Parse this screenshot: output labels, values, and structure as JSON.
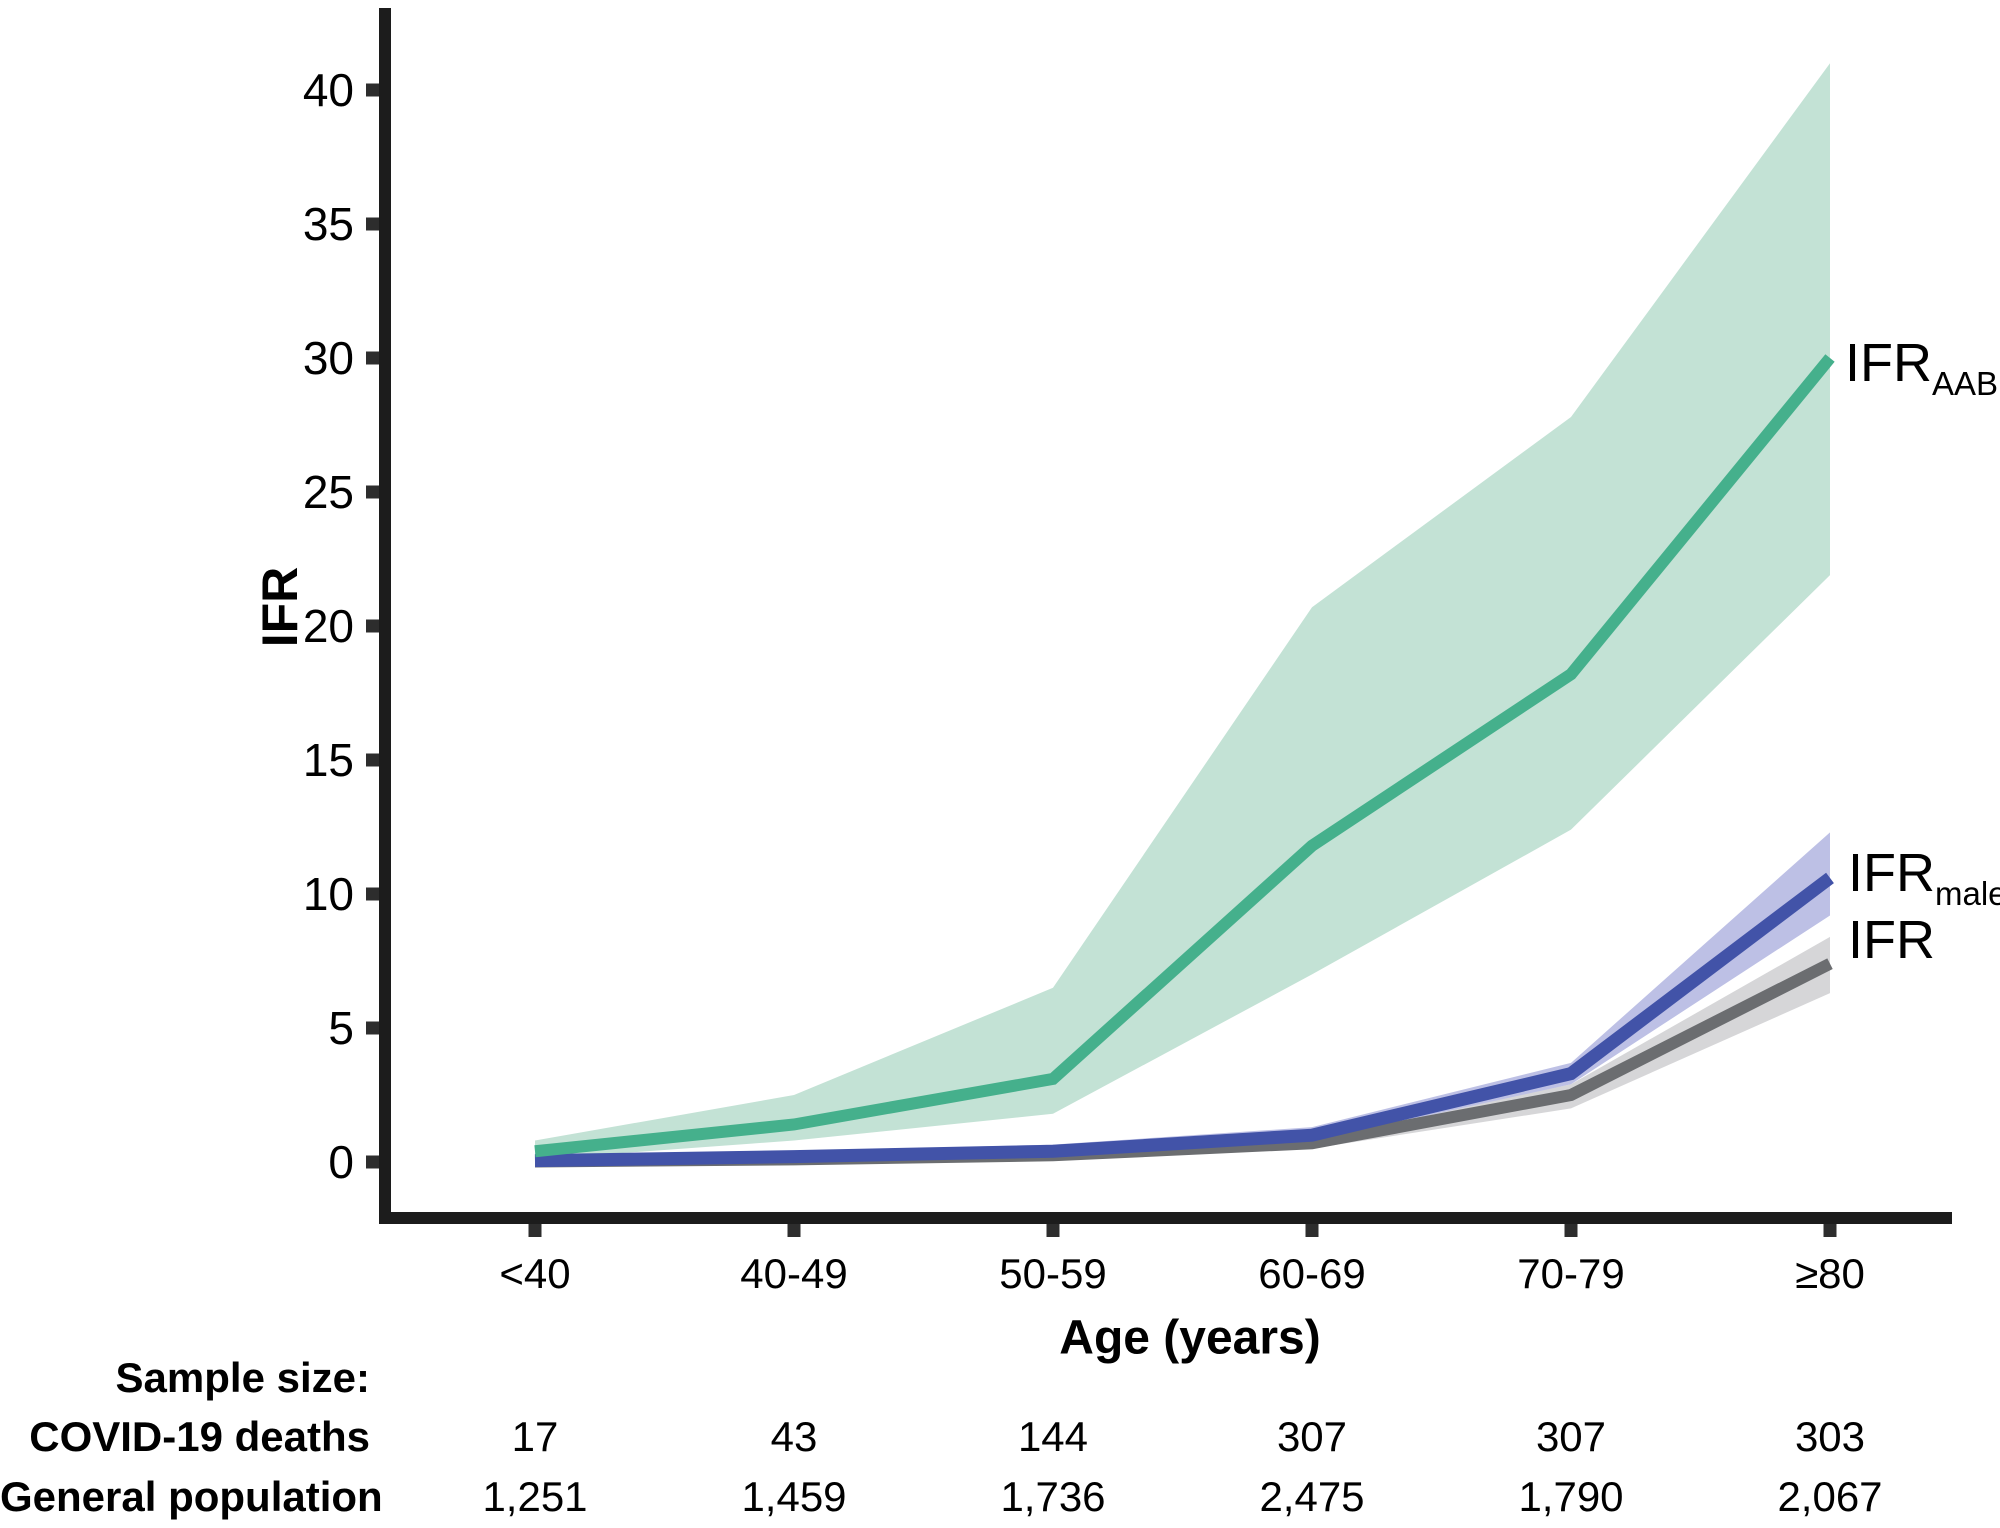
{
  "chart_data": {
    "type": "line",
    "title": "",
    "xlabel": "Age (years)",
    "ylabel": "IFR",
    "categories": [
      "<40",
      "40-49",
      "50-59",
      "60-69",
      "70-79",
      "≥80"
    ],
    "ylim": [
      0,
      40
    ],
    "yticks": [
      0,
      5,
      10,
      15,
      20,
      25,
      30,
      35,
      40
    ],
    "grid": false,
    "legend_position": "right-of-line-ends",
    "series": [
      {
        "name": "IFR_AAB",
        "label_main": "IFR",
        "label_sub": "AAB",
        "color": "#45B08C",
        "band_color": "#C3E2D5",
        "values": [
          0.4,
          1.4,
          3.1,
          11.8,
          18.2,
          30.0
        ],
        "ci_low": [
          0.1,
          0.8,
          1.8,
          7.0,
          12.4,
          21.9
        ],
        "ci_high": [
          0.8,
          2.5,
          6.5,
          20.7,
          27.8,
          41.0
        ]
      },
      {
        "name": "IFR_males",
        "label_main": "IFR",
        "label_sub": "males",
        "color": "#4253A8",
        "band_color": "#BDC0E5",
        "values": [
          0.05,
          0.2,
          0.4,
          1.0,
          3.3,
          10.6
        ],
        "ci_low": [
          0.0,
          0.05,
          0.2,
          0.8,
          2.9,
          9.2
        ],
        "ci_high": [
          0.18,
          0.4,
          0.65,
          1.3,
          3.7,
          12.3
        ]
      },
      {
        "name": "IFR",
        "label_main": "IFR",
        "label_sub": "",
        "color": "#6B6D70",
        "band_color": "#D6D6D8",
        "values": [
          0.02,
          0.1,
          0.25,
          0.7,
          2.5,
          7.4
        ],
        "ci_low": [
          0.0,
          0.02,
          0.1,
          0.5,
          2.0,
          6.3
        ],
        "ci_high": [
          0.1,
          0.25,
          0.45,
          0.9,
          2.9,
          8.4
        ]
      }
    ],
    "sample_table": {
      "title": "Sample size:",
      "rows": [
        {
          "label": "COVID-19 deaths",
          "values": [
            "17",
            "43",
            "144",
            "307",
            "307",
            "303"
          ]
        },
        {
          "label": "General population",
          "values": [
            "1,251",
            "1,459",
            "1,736",
            "2,475",
            "1,790",
            "2,067"
          ]
        }
      ]
    }
  },
  "colors": {
    "axis": "#1C1C1C",
    "tick": "#2D2D2D",
    "text": "#000000"
  }
}
